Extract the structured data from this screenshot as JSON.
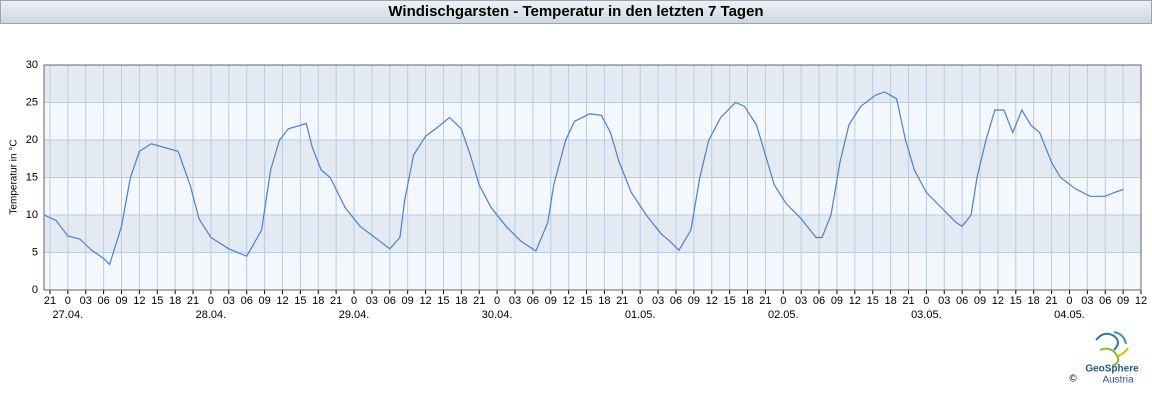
{
  "chart_data": {
    "type": "line",
    "title": "Windischgarsten - Temperatur in den letzten 7 Tagen",
    "y_label": "Temperatur in °C",
    "x": [
      -4,
      -2,
      0,
      2,
      4,
      6,
      7,
      9,
      10.5,
      12,
      14,
      18.5,
      20.5,
      22,
      24,
      27,
      30,
      32.5,
      34,
      35.5,
      37,
      40,
      41,
      42.5,
      44,
      46.5,
      49,
      51.5,
      54,
      55.7,
      56.5,
      58,
      60,
      62.5,
      64,
      66,
      67.5,
      69,
      71,
      73.5,
      76,
      78.5,
      80.5,
      81.5,
      83.5,
      85,
      87.5,
      89.5,
      91,
      92.5,
      94.5,
      97,
      99.5,
      101,
      102.5,
      104.5,
      106,
      107.5,
      109.5,
      112,
      113.5,
      115.5,
      117,
      118.5,
      120.5,
      123,
      125.5,
      126.5,
      128,
      129.5,
      131,
      133,
      135.5,
      137,
      139,
      140.5,
      142,
      144,
      146.5,
      149,
      150,
      151.5,
      152.5,
      154,
      155.5,
      157,
      158.5,
      160,
      161.5,
      163,
      165,
      166.5,
      169,
      171.5,
      174,
      175.5,
      177
    ],
    "series": [
      {
        "name": "Temperatur",
        "color": "#4b7fd6",
        "values": [
          10,
          9.3,
          7.2,
          6.8,
          5.3,
          4.2,
          3.4,
          8.5,
          15,
          18.5,
          19.5,
          18.5,
          14,
          9.5,
          7,
          5.5,
          4.5,
          8,
          16,
          20,
          21.5,
          22.2,
          19,
          16,
          15,
          11,
          8.5,
          7,
          5.5,
          7,
          12,
          18,
          20.5,
          22,
          23,
          21.5,
          18,
          14,
          11,
          8.5,
          6.5,
          5.2,
          9,
          14,
          20,
          22.5,
          23.5,
          23.3,
          21,
          17,
          13,
          10,
          7.5,
          6.5,
          5.3,
          8,
          15,
          20,
          23,
          25,
          24.5,
          22,
          18,
          14,
          11.5,
          9.5,
          7,
          7,
          10,
          17,
          22,
          24.5,
          26,
          26.4,
          25.5,
          20,
          16,
          13,
          11,
          9,
          8.5,
          10,
          15,
          20,
          24,
          24,
          21,
          24,
          22,
          21,
          17,
          15,
          13.5,
          12.5,
          12.5,
          13,
          13.4
        ]
      }
    ],
    "xlim": [
      -4,
      180
    ],
    "ylim": [
      0,
      30
    ],
    "yticks": [
      0,
      5,
      10,
      15,
      20,
      25,
      30
    ],
    "xticks": [
      {
        "value": -3,
        "label": "21"
      },
      {
        "value": 0,
        "label": "0"
      },
      {
        "value": 3,
        "label": "03"
      },
      {
        "value": 6,
        "label": "06"
      },
      {
        "value": 9,
        "label": "09"
      },
      {
        "value": 12,
        "label": "12"
      },
      {
        "value": 15,
        "label": "15"
      },
      {
        "value": 18,
        "label": "18"
      },
      {
        "value": 21,
        "label": "21"
      },
      {
        "value": 24,
        "label": "0"
      },
      {
        "value": 27,
        "label": "03"
      },
      {
        "value": 30,
        "label": "06"
      },
      {
        "value": 33,
        "label": "09"
      },
      {
        "value": 36,
        "label": "12"
      },
      {
        "value": 39,
        "label": "15"
      },
      {
        "value": 42,
        "label": "18"
      },
      {
        "value": 45,
        "label": "21"
      },
      {
        "value": 48,
        "label": "0"
      },
      {
        "value": 51,
        "label": "03"
      },
      {
        "value": 54,
        "label": "06"
      },
      {
        "value": 57,
        "label": "09"
      },
      {
        "value": 60,
        "label": "12"
      },
      {
        "value": 63,
        "label": "15"
      },
      {
        "value": 66,
        "label": "18"
      },
      {
        "value": 69,
        "label": "21"
      },
      {
        "value": 72,
        "label": "0"
      },
      {
        "value": 75,
        "label": "03"
      },
      {
        "value": 78,
        "label": "06"
      },
      {
        "value": 81,
        "label": "09"
      },
      {
        "value": 84,
        "label": "12"
      },
      {
        "value": 87,
        "label": "15"
      },
      {
        "value": 90,
        "label": "18"
      },
      {
        "value": 93,
        "label": "21"
      },
      {
        "value": 96,
        "label": "0"
      },
      {
        "value": 99,
        "label": "03"
      },
      {
        "value": 102,
        "label": "06"
      },
      {
        "value": 105,
        "label": "09"
      },
      {
        "value": 108,
        "label": "12"
      },
      {
        "value": 111,
        "label": "15"
      },
      {
        "value": 114,
        "label": "18"
      },
      {
        "value": 117,
        "label": "21"
      },
      {
        "value": 120,
        "label": "0"
      },
      {
        "value": 123,
        "label": "03"
      },
      {
        "value": 126,
        "label": "06"
      },
      {
        "value": 129,
        "label": "09"
      },
      {
        "value": 132,
        "label": "12"
      },
      {
        "value": 135,
        "label": "15"
      },
      {
        "value": 138,
        "label": "18"
      },
      {
        "value": 141,
        "label": "21"
      },
      {
        "value": 144,
        "label": "0"
      },
      {
        "value": 147,
        "label": "03"
      },
      {
        "value": 150,
        "label": "06"
      },
      {
        "value": 153,
        "label": "09"
      },
      {
        "value": 156,
        "label": "12"
      },
      {
        "value": 159,
        "label": "15"
      },
      {
        "value": 162,
        "label": "18"
      },
      {
        "value": 165,
        "label": "21"
      },
      {
        "value": 168,
        "label": "0"
      },
      {
        "value": 171,
        "label": "03"
      },
      {
        "value": 174,
        "label": "06"
      },
      {
        "value": 177,
        "label": "09"
      },
      {
        "value": 180,
        "label": "12"
      }
    ],
    "date_labels": [
      {
        "value": 0,
        "label": "27.04."
      },
      {
        "value": 24,
        "label": "28.04."
      },
      {
        "value": 48,
        "label": "29.04."
      },
      {
        "value": 72,
        "label": "30.04."
      },
      {
        "value": 96,
        "label": "01.05."
      },
      {
        "value": 120,
        "label": "02.05."
      },
      {
        "value": 144,
        "label": "03.05."
      },
      {
        "value": 168,
        "label": "04.05."
      }
    ],
    "grid": true,
    "band_colors": [
      "#f4f7fb",
      "#e4eaf2"
    ],
    "logo": {
      "name": "GeoSphere",
      "country": "Austria",
      "copyright": "©"
    }
  }
}
